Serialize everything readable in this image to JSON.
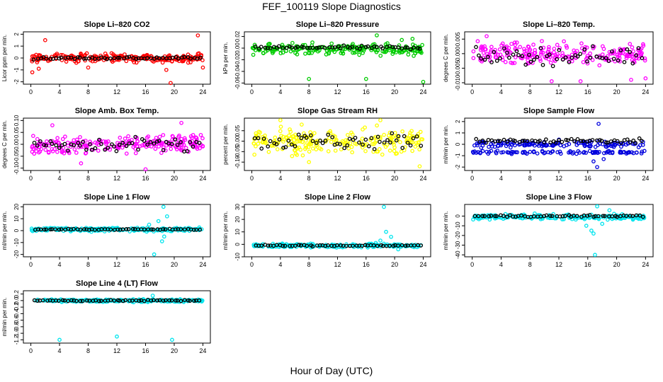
{
  "title": "FEF_100119  Slope Diagnostics",
  "xlabel": "Hour of Day (UTC)",
  "colors": {
    "red": "#ff0000",
    "green": "#00cc00",
    "magenta": "#ff00ff",
    "yellow": "#ffff00",
    "blue": "#0000dd",
    "cyan": "#00e5ee",
    "black": "#000000"
  },
  "chart_data": [
    {
      "type": "scatter",
      "title": "Slope Li–820 CO2",
      "ylabel": "Licor ppm per min.",
      "color": "red",
      "xlim": [
        0,
        24
      ],
      "ylim": [
        -2.2,
        2.2
      ],
      "xticks": [
        0,
        4,
        8,
        12,
        16,
        20,
        24
      ],
      "yticks": [
        -2,
        -1,
        0,
        1,
        2
      ],
      "yticklabels": [
        "-2",
        "-1",
        "0",
        "1",
        "2"
      ],
      "base": 0.0,
      "spread": 0.35,
      "trend": 0.0,
      "black_spread": 0.12,
      "black_offset": 0.0,
      "outliers": [
        [
          2.0,
          1.5
        ],
        [
          1.1,
          -0.9
        ],
        [
          8.0,
          -0.8
        ],
        [
          23.3,
          1.9
        ],
        [
          19.5,
          -2.1
        ],
        [
          24.0,
          -0.8
        ],
        [
          18.9,
          -1.0
        ],
        [
          0.2,
          -1.2
        ]
      ]
    },
    {
      "type": "scatter",
      "title": "Slope Li–820 Pressure",
      "ylabel": "kPa per min.",
      "color": "green",
      "xlim": [
        0,
        24
      ],
      "ylim": [
        -0.062,
        0.028
      ],
      "xticks": [
        0,
        4,
        8,
        12,
        16,
        20,
        24
      ],
      "yticks": [
        -0.06,
        -0.04,
        -0.02,
        0.0,
        0.02
      ],
      "yticklabels": [
        "-0.06",
        "-0.04",
        "-0.02",
        "0.00",
        "0.02"
      ],
      "base": -0.002,
      "spread": 0.009,
      "trend": 0.0,
      "black_spread": 0.003,
      "black_offset": 0.003,
      "outliers": [
        [
          8.0,
          -0.053
        ],
        [
          16.0,
          -0.053
        ],
        [
          17.5,
          0.022
        ],
        [
          24.0,
          -0.058
        ],
        [
          21.0,
          0.014
        ],
        [
          22.5,
          0.016
        ]
      ]
    },
    {
      "type": "scatter",
      "title": "Slope Li–820 Temp.",
      "ylabel": "degrees C per min.",
      "color": "magenta",
      "xlim": [
        0,
        24
      ],
      "ylim": [
        -0.0105,
        0.0075
      ],
      "xticks": [
        0,
        4,
        8,
        12,
        16,
        20,
        24
      ],
      "yticks": [
        -0.01,
        -0.005,
        0.0,
        0.005
      ],
      "yticklabels": [
        "-0.010",
        "-0.005",
        "0.000",
        "0.005"
      ],
      "base": 0.0,
      "spread": 0.0035,
      "trend": 0.0,
      "black_spread": 0.003,
      "black_offset": -0.0008,
      "outliers": [
        [
          11.0,
          -0.0095
        ],
        [
          15.0,
          -0.0095
        ],
        [
          22.0,
          -0.009
        ],
        [
          24.0,
          -0.0085
        ],
        [
          2.0,
          0.006
        ]
      ]
    },
    {
      "type": "scatter",
      "title": "Slope Amb. Box Temp.",
      "ylabel": "degrees C per min.",
      "color": "magenta",
      "xlim": [
        0,
        24
      ],
      "ylim": [
        -0.11,
        0.11
      ],
      "xticks": [
        0,
        4,
        8,
        12,
        16,
        20,
        24
      ],
      "yticks": [
        -0.1,
        -0.05,
        0.0,
        0.05,
        0.1
      ],
      "yticklabels": [
        "-0.10",
        "-0.05",
        "0.00",
        "0.05",
        "0.10"
      ],
      "base": 0.0,
      "spread": 0.04,
      "trend": 0.02,
      "black_spread": 0.03,
      "black_offset": 0.0,
      "outliers": [
        [
          16.0,
          -0.105
        ],
        [
          7.0,
          -0.08
        ],
        [
          3.0,
          0.08
        ],
        [
          21.0,
          0.09
        ]
      ]
    },
    {
      "type": "scatter",
      "title": "Slope Gas Stream RH",
      "ylabel": "percent per min.",
      "color": "yellow",
      "xlim": [
        0,
        24
      ],
      "ylim": [
        -0.14,
        0.11
      ],
      "xticks": [
        0,
        4,
        8,
        12,
        16,
        20,
        24
      ],
      "yticks": [
        -0.1,
        -0.05,
        0.0,
        0.05
      ],
      "yticklabels": [
        "-0.10",
        "-0.05",
        "0.00",
        "0.05"
      ],
      "base": 0.0,
      "spread": 0.055,
      "trend": 0.0,
      "black_spread": 0.04,
      "black_offset": 0.0,
      "outliers": [
        [
          4.0,
          0.1
        ],
        [
          18.0,
          0.1
        ],
        [
          23.5,
          -0.12
        ],
        [
          8.0,
          -0.1
        ]
      ]
    },
    {
      "type": "scatter",
      "title": "Slope Sample Flow",
      "ylabel": "ml/min per min.",
      "color": "blue",
      "xlim": [
        0,
        24
      ],
      "ylim": [
        -2.3,
        2.3
      ],
      "xticks": [
        0,
        4,
        8,
        12,
        16,
        20,
        24
      ],
      "yticks": [
        -2,
        -1,
        0,
        1,
        2
      ],
      "yticklabels": [
        "-2",
        "-1",
        "0",
        "1",
        "2"
      ],
      "base": 0.0,
      "spread": 0.3,
      "trend": 0.0,
      "black_spread": 0.2,
      "black_offset": 0.3,
      "band2": -0.7,
      "outliers": [
        [
          17.5,
          1.8
        ],
        [
          16.8,
          -1.5
        ],
        [
          17.3,
          -2.0
        ],
        [
          18.2,
          -1.3
        ]
      ]
    },
    {
      "type": "scatter",
      "title": "Slope Line 1 Flow",
      "ylabel": "ml/min per min.",
      "color": "cyan",
      "xlim": [
        0,
        24
      ],
      "ylim": [
        -22,
        22
      ],
      "xticks": [
        0,
        4,
        8,
        12,
        16,
        20,
        24
      ],
      "yticks": [
        -20,
        -10,
        0,
        10,
        20
      ],
      "yticklabels": [
        "-20",
        "-10",
        "0",
        "10",
        "20"
      ],
      "base": 1.0,
      "spread": 1.5,
      "trend": 0.0,
      "black_spread": 0.4,
      "black_offset": 0.0,
      "outliers": [
        [
          18.5,
          20
        ],
        [
          17.2,
          -20
        ],
        [
          19.0,
          12
        ],
        [
          18.6,
          -5
        ],
        [
          18.3,
          -9
        ],
        [
          16.5,
          5
        ],
        [
          17.8,
          8
        ]
      ]
    },
    {
      "type": "scatter",
      "title": "Slope Line 2 Flow",
      "ylabel": "ml/min per min.",
      "color": "cyan",
      "xlim": [
        0,
        24
      ],
      "ylim": [
        -10,
        32
      ],
      "xticks": [
        0,
        4,
        8,
        12,
        16,
        20,
        24
      ],
      "yticks": [
        -10,
        0,
        10,
        20,
        30
      ],
      "yticklabels": [
        "-10",
        "0",
        "10",
        "20",
        "30"
      ],
      "base": -1.0,
      "spread": 1.5,
      "trend": 0.0,
      "black_spread": 0.6,
      "black_offset": 0.0,
      "outliers": [
        [
          18.5,
          30
        ],
        [
          18.8,
          10
        ],
        [
          19.5,
          6
        ],
        [
          20.5,
          -4
        ],
        [
          18.0,
          3
        ]
      ]
    },
    {
      "type": "scatter",
      "title": "Slope Line 3 Flow",
      "ylabel": "ml/min per min.",
      "color": "cyan",
      "xlim": [
        0,
        24
      ],
      "ylim": [
        -42,
        12
      ],
      "xticks": [
        0,
        4,
        8,
        12,
        16,
        20,
        24
      ],
      "yticks": [
        -40,
        -30,
        -20,
        -10,
        0
      ],
      "yticklabels": [
        "-40",
        "-30",
        "-20",
        "-10",
        "0"
      ],
      "base": -1.0,
      "spread": 2.5,
      "trend": 0.0,
      "black_spread": 1.0,
      "black_offset": 1.0,
      "outliers": [
        [
          17.0,
          -40
        ],
        [
          17.3,
          10
        ],
        [
          16.5,
          -15
        ],
        [
          15.8,
          -10
        ],
        [
          18.0,
          -8
        ],
        [
          16.8,
          -18
        ],
        [
          19.0,
          6
        ]
      ]
    },
    {
      "type": "scatter",
      "title": "Slope Line 4 (LT) Flow",
      "ylabel": "ml/min per min.",
      "color": "cyan",
      "xlim": [
        0,
        24
      ],
      "ylim": [
        -1.3,
        0.3
      ],
      "xticks": [
        0,
        4,
        8,
        12,
        16,
        20,
        24
      ],
      "yticks": [
        -1.2,
        -1.0,
        -0.8,
        -0.6,
        -0.4,
        -0.2,
        0.0,
        0.2
      ],
      "yticklabels": [
        "-1.2",
        "-1.0",
        "-0.8",
        "-0.6",
        "-0.4",
        "-0.2",
        "0.0",
        "0.2"
      ],
      "base": 0.0,
      "spread": 0.04,
      "trend": 0.0,
      "black_spread": 0.02,
      "black_offset": 0.0,
      "outliers": [
        [
          4.0,
          -1.2
        ],
        [
          12.0,
          -1.1
        ],
        [
          19.7,
          -1.2
        ],
        [
          17.0,
          0.15
        ]
      ]
    }
  ]
}
